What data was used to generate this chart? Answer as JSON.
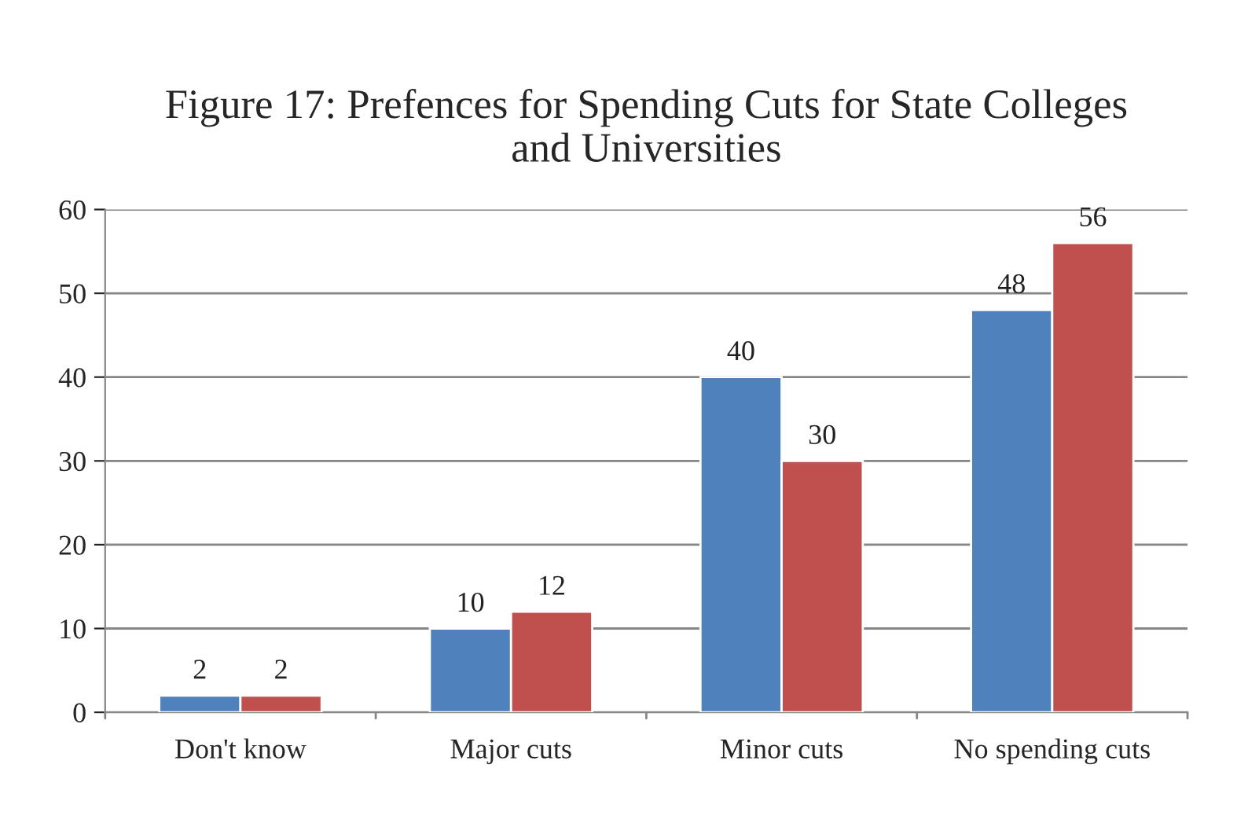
{
  "chart_data": {
    "type": "bar",
    "title": "Figure 17: Prefences for Spending Cuts for State Colleges\nand Universities",
    "categories": [
      "Don't know",
      "Major cuts",
      "Minor cuts",
      "No spending cuts"
    ],
    "series": [
      {
        "color": "#4f81bd",
        "values": [
          2,
          10,
          40,
          48
        ]
      },
      {
        "color": "#c0504d",
        "values": [
          2,
          12,
          30,
          56
        ]
      }
    ],
    "ylim": [
      0,
      60
    ],
    "yticks": [
      0,
      10,
      20,
      30,
      40,
      50,
      60
    ],
    "grid": "y",
    "data_labels": true
  }
}
